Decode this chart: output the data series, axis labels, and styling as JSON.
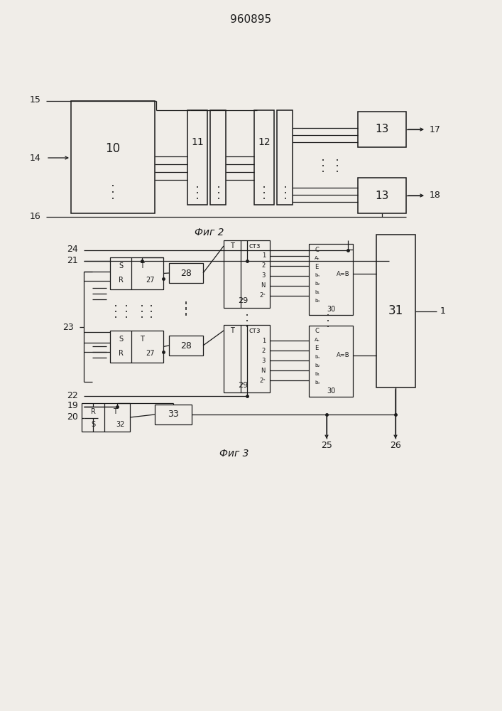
{
  "title": "960895",
  "fig1_label": "Фиг 2",
  "fig2_label": "Фиг 3",
  "bg": "#f0ede8",
  "lc": "#1a1a1a"
}
